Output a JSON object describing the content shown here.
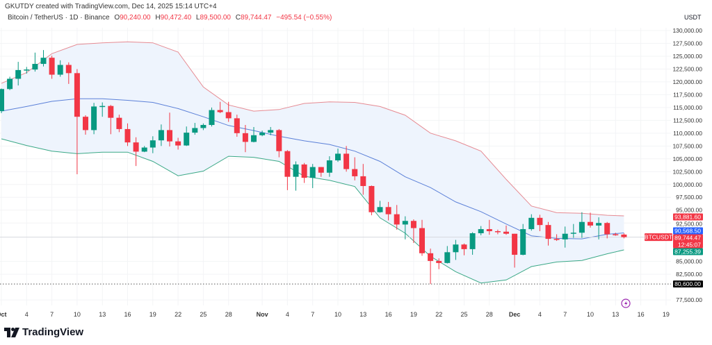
{
  "credit": "GKUTDY created with TradingView.com, Dec 14, 2025 15:14 UTC+4",
  "legend": {
    "symbol": "Bitcoin / TetherUS · 1D · Binance",
    "ohlc": [
      {
        "label": "O",
        "value": "90,240.00"
      },
      {
        "label": "H",
        "value": "90,472.40"
      },
      {
        "label": "L",
        "value": "89,500.00"
      },
      {
        "label": "C",
        "value": "89,744.47"
      }
    ],
    "change": "−495.54 (−0.55%)"
  },
  "brand": "TradingView",
  "colors": {
    "up": "#089981",
    "down": "#f23645",
    "upper_band": "#e68a92",
    "middle_band": "#5b80d8",
    "lower_band": "#3aa886",
    "band_fill": "#eef4fd",
    "last_price": "#f23645",
    "middle_label": "#2962ff",
    "lower_label": "#089981",
    "low_label": "#000000"
  },
  "chart_data": {
    "type": "candlestick",
    "symbol": "BTCUSDT",
    "currency": "USDT",
    "interval": "1D",
    "ylim": [
      76000,
      131500
    ],
    "y_ticks": [
      "130,000.00",
      "127,500.00",
      "125,000.00",
      "122,500.00",
      "120,000.00",
      "117,500.00",
      "115,000.00",
      "112,500.00",
      "110,000.00",
      "107,500.00",
      "105,000.00",
      "102,500.00",
      "100,000.00",
      "97,500.00",
      "95,000.00",
      "92,500.00",
      "85,000.00",
      "82,500.00",
      "77,500.00"
    ],
    "y_tick_values": [
      130000,
      127500,
      125000,
      122500,
      120000,
      117500,
      115000,
      112500,
      110000,
      107500,
      105000,
      102500,
      100000,
      97500,
      95000,
      92500,
      85000,
      82500,
      77500
    ],
    "x_ticks": [
      {
        "label": "Oct",
        "day": 0
      },
      {
        "label": "4",
        "day": 3
      },
      {
        "label": "7",
        "day": 6
      },
      {
        "label": "10",
        "day": 9
      },
      {
        "label": "13",
        "day": 12
      },
      {
        "label": "16",
        "day": 15
      },
      {
        "label": "19",
        "day": 18
      },
      {
        "label": "22",
        "day": 21
      },
      {
        "label": "25",
        "day": 24
      },
      {
        "label": "28",
        "day": 27
      },
      {
        "label": "Nov",
        "day": 31
      },
      {
        "label": "4",
        "day": 34
      },
      {
        "label": "7",
        "day": 37
      },
      {
        "label": "10",
        "day": 40
      },
      {
        "label": "13",
        "day": 43
      },
      {
        "label": "16",
        "day": 46
      },
      {
        "label": "19",
        "day": 49
      },
      {
        "label": "22",
        "day": 52
      },
      {
        "label": "25",
        "day": 55
      },
      {
        "label": "28",
        "day": 58
      },
      {
        "label": "Dec",
        "day": 61
      },
      {
        "label": "4",
        "day": 64
      },
      {
        "label": "7",
        "day": 67
      },
      {
        "label": "10",
        "day": 70
      },
      {
        "label": "13",
        "day": 73
      },
      {
        "label": "16",
        "day": 76
      },
      {
        "label": "19",
        "day": 79
      }
    ],
    "candles_columns": [
      "date",
      "open",
      "high",
      "low",
      "close"
    ],
    "candles": [
      [
        "Oct 1",
        114300,
        118700,
        113900,
        118600
      ],
      [
        "Oct 2",
        118600,
        121000,
        118400,
        120600
      ],
      [
        "Oct 3",
        120600,
        123900,
        119300,
        122300
      ],
      [
        "Oct 4",
        122300,
        122900,
        121600,
        122400
      ],
      [
        "Oct 5",
        122400,
        125700,
        122000,
        123500
      ],
      [
        "Oct 6",
        123500,
        126200,
        123000,
        124700
      ],
      [
        "Oct 7",
        124700,
        125100,
        120600,
        121400
      ],
      [
        "Oct 8",
        121400,
        124200,
        121000,
        123300
      ],
      [
        "Oct 9",
        123300,
        123800,
        119600,
        121700
      ],
      [
        "Oct 10",
        121700,
        122500,
        102000,
        113200
      ],
      [
        "Oct 11",
        113200,
        113500,
        109700,
        110600
      ],
      [
        "Oct 12",
        110600,
        115900,
        109800,
        115200
      ],
      [
        "Oct 13",
        115200,
        116000,
        113200,
        115300
      ],
      [
        "Oct 14",
        115300,
        115500,
        109800,
        113000
      ],
      [
        "Oct 15",
        113000,
        113600,
        110200,
        110800
      ],
      [
        "Oct 16",
        110800,
        111900,
        107500,
        108200
      ],
      [
        "Oct 17",
        108200,
        109200,
        103600,
        106400
      ],
      [
        "Oct 18",
        106400,
        107500,
        106300,
        107200
      ],
      [
        "Oct 19",
        107200,
        109400,
        106100,
        108600
      ],
      [
        "Oct 20",
        108600,
        111700,
        107500,
        110600
      ],
      [
        "Oct 21",
        110600,
        114000,
        107400,
        108400
      ],
      [
        "Oct 22",
        108400,
        109100,
        106800,
        107600
      ],
      [
        "Oct 23",
        107600,
        111300,
        107500,
        110100
      ],
      [
        "Oct 24",
        110100,
        112000,
        109700,
        111000
      ],
      [
        "Oct 25",
        111000,
        111900,
        110600,
        111600
      ],
      [
        "Oct 26",
        111600,
        115000,
        111300,
        114500
      ],
      [
        "Oct 27",
        114500,
        116100,
        113900,
        114100
      ],
      [
        "Oct 28",
        114100,
        116100,
        112200,
        112900
      ],
      [
        "Oct 29",
        112900,
        113600,
        109300,
        110000
      ],
      [
        "Oct 30",
        110000,
        111600,
        106300,
        108300
      ],
      [
        "Oct 31",
        108300,
        111200,
        108200,
        109600
      ],
      [
        "Nov 1",
        109600,
        110500,
        109400,
        110100
      ],
      [
        "Nov 2",
        110100,
        111200,
        109600,
        110600
      ],
      [
        "Nov 3",
        110600,
        110800,
        105300,
        106500
      ],
      [
        "Nov 4",
        106500,
        106700,
        98900,
        101500
      ],
      [
        "Nov 5",
        101500,
        104500,
        98800,
        103900
      ],
      [
        "Nov 6",
        103900,
        104200,
        100300,
        101300
      ],
      [
        "Nov 7",
        101300,
        104000,
        99300,
        103400
      ],
      [
        "Nov 8",
        103400,
        103400,
        101500,
        102300
      ],
      [
        "Nov 9",
        102300,
        105500,
        101500,
        104700
      ],
      [
        "Nov 10",
        104700,
        107000,
        104400,
        106000
      ],
      [
        "Nov 11",
        106000,
        107500,
        102500,
        103000
      ],
      [
        "Nov 12",
        103000,
        105300,
        100800,
        101600
      ],
      [
        "Nov 13",
        101600,
        104000,
        98000,
        99700
      ],
      [
        "Nov 14",
        99700,
        99800,
        94000,
        94600
      ],
      [
        "Nov 15",
        94600,
        96800,
        94500,
        95600
      ],
      [
        "Nov 16",
        95600,
        96600,
        93000,
        94200
      ],
      [
        "Nov 17",
        94200,
        96000,
        91200,
        92200
      ],
      [
        "Nov 18",
        92200,
        93800,
        89300,
        92900
      ],
      [
        "Nov 19",
        92900,
        93200,
        88600,
        91500
      ],
      [
        "Nov 20",
        91500,
        93100,
        86100,
        86600
      ],
      [
        "Nov 21",
        86600,
        87500,
        80600,
        85100
      ],
      [
        "Nov 22",
        85100,
        85600,
        83500,
        84700
      ],
      [
        "Nov 23",
        84700,
        88000,
        84600,
        86800
      ],
      [
        "Nov 24",
        86800,
        89200,
        85300,
        88300
      ],
      [
        "Nov 25",
        88300,
        88500,
        86200,
        87400
      ],
      [
        "Nov 26",
        87400,
        90700,
        86300,
        90500
      ],
      [
        "Nov 27",
        90500,
        91900,
        90100,
        91300
      ],
      [
        "Nov 28",
        91300,
        93100,
        90200,
        90900
      ],
      [
        "Nov 29",
        90900,
        91200,
        90300,
        90800
      ],
      [
        "Nov 30",
        90800,
        92000,
        90200,
        90400
      ],
      [
        "Dec 1",
        90400,
        90400,
        83800,
        86300
      ],
      [
        "Dec 2",
        86300,
        92300,
        86200,
        91300
      ],
      [
        "Dec 3",
        91300,
        94200,
        91000,
        93500
      ],
      [
        "Dec 4",
        93500,
        94100,
        90900,
        92100
      ],
      [
        "Dec 5",
        92100,
        92700,
        88100,
        89400
      ],
      [
        "Dec 6",
        89400,
        90300,
        89000,
        89300
      ],
      [
        "Dec 7",
        89300,
        91800,
        87700,
        90400
      ],
      [
        "Dec 8",
        90400,
        92300,
        89600,
        90600
      ],
      [
        "Dec 9",
        90600,
        94600,
        89600,
        92700
      ],
      [
        "Dec 10",
        92700,
        94500,
        91600,
        92000
      ],
      [
        "Dec 11",
        92000,
        93600,
        89300,
        92500
      ],
      [
        "Dec 12",
        92500,
        92700,
        89500,
        90300
      ],
      [
        "Dec 13",
        90300,
        90600,
        90000,
        90200
      ],
      [
        "Dec 14",
        90240,
        90472,
        89500,
        89744
      ]
    ],
    "bollinger_columns": [
      "day",
      "upper",
      "middle",
      "lower"
    ],
    "bollinger": [
      [
        0,
        119700,
        114300,
        108900
      ],
      [
        3,
        121800,
        115200,
        107600
      ],
      [
        6,
        125500,
        116200,
        106500
      ],
      [
        9,
        127300,
        116700,
        106000
      ],
      [
        12,
        127600,
        116700,
        106300
      ],
      [
        15,
        127800,
        116400,
        106300
      ],
      [
        18,
        127600,
        116000,
        104500
      ],
      [
        21,
        125800,
        114800,
        101700
      ],
      [
        24,
        119000,
        113200,
        102600
      ],
      [
        27,
        115500,
        111500,
        105500
      ],
      [
        30,
        114300,
        110500,
        105300
      ],
      [
        33,
        114600,
        109400,
        104500
      ],
      [
        36,
        115800,
        108500,
        101600
      ],
      [
        39,
        116100,
        107800,
        100800
      ],
      [
        42,
        116000,
        106500,
        99600
      ],
      [
        45,
        115200,
        104500,
        93500
      ],
      [
        48,
        113500,
        101500,
        90500
      ],
      [
        51,
        110000,
        99400,
        86000
      ],
      [
        54,
        108500,
        96600,
        83000
      ],
      [
        57,
        106500,
        94700,
        80800
      ],
      [
        60,
        101000,
        92300,
        81400
      ],
      [
        63,
        95800,
        90000,
        84000
      ],
      [
        66,
        94500,
        89500,
        84900
      ],
      [
        69,
        94400,
        89400,
        85200
      ],
      [
        72,
        94000,
        90300,
        86500
      ],
      [
        74,
        93881.6,
        90568.5,
        87255.39
      ]
    ],
    "price_labels": {
      "upper": {
        "value": 93881.6,
        "text": "93,881.60"
      },
      "middle": {
        "value": 90568.5,
        "text": "90,568.50"
      },
      "last": {
        "value": 89744.47,
        "text": "89,744.47",
        "countdown": "12:45:07",
        "tag": "BTCUSDT"
      },
      "lower": {
        "value": 87255.39,
        "text": "87,255.39"
      },
      "low": {
        "value": 80600,
        "text": "80,600.00"
      }
    }
  }
}
